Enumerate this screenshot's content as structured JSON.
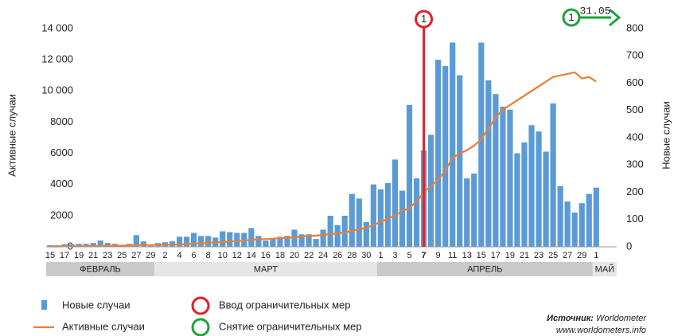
{
  "chart_data": {
    "type": "bar",
    "categories": [
      "15",
      null,
      "17",
      null,
      "19",
      null,
      "21",
      null,
      "23",
      null,
      "25",
      null,
      "27",
      null,
      "29",
      null,
      "2",
      null,
      "4",
      null,
      "6",
      null,
      "8",
      null,
      "10",
      null,
      "12",
      null,
      "14",
      null,
      "16",
      null,
      "18",
      null,
      "20",
      null,
      "22",
      null,
      "24",
      null,
      "26",
      null,
      "28",
      null,
      "30",
      null,
      "1",
      null,
      "3",
      null,
      "5",
      null,
      "7",
      null,
      "9",
      null,
      "11",
      null,
      "13",
      null,
      "15",
      null,
      "17",
      null,
      "19",
      null,
      "21",
      null,
      "23",
      null,
      "25",
      null,
      "27",
      null,
      "29",
      null,
      "1"
    ],
    "months": [
      "ФЕВРАЛЬ",
      "МАРТ",
      "АПРЕЛЬ",
      "МАЙ"
    ],
    "series": [
      {
        "name": "Новые случаи",
        "type": "bar",
        "axis": "y2",
        "color": "#5b9bd5",
        "values": [
          6,
          6,
          9,
          9,
          11,
          11,
          14,
          23,
          14,
          11,
          6,
          11,
          43,
          20,
          3,
          14,
          17,
          20,
          37,
          37,
          51,
          40,
          40,
          34,
          57,
          54,
          51,
          51,
          69,
          40,
          23,
          31,
          37,
          40,
          63,
          46,
          46,
          29,
          63,
          114,
          80,
          114,
          194,
          177,
          91,
          229,
          211,
          234,
          320,
          206,
          520,
          251,
          354,
          411,
          686,
          663,
          749,
          629,
          251,
          269,
          749,
          611,
          560,
          514,
          503,
          343,
          383,
          446,
          423,
          349,
          526,
          223,
          166,
          126,
          160,
          194,
          217
        ]
      },
      {
        "name": "Активные случаи",
        "type": "line",
        "color": "#ed7d31",
        "values": [
          20,
          25,
          30,
          35,
          40,
          45,
          50,
          60,
          65,
          70,
          75,
          80,
          100,
          110,
          110,
          120,
          130,
          140,
          160,
          180,
          200,
          230,
          260,
          280,
          310,
          340,
          370,
          400,
          450,
          480,
          500,
          520,
          560,
          590,
          620,
          650,
          690,
          720,
          760,
          820,
          860,
          920,
          1020,
          1130,
          1220,
          1400,
          1600,
          1800,
          2000,
          2300,
          2500,
          2900,
          3500,
          3900,
          4300,
          4900,
          5700,
          6000,
          6200,
          6500,
          6900,
          7600,
          8300,
          8800,
          9100,
          9400,
          9700,
          10000,
          10300,
          10600,
          10900,
          11000,
          11100,
          11200,
          10800,
          10900,
          10600
        ]
      }
    ],
    "ylabel": "Активные случаи",
    "y2label": "Новые случаи",
    "ylim": [
      0,
      14000
    ],
    "yticks": [
      0,
      2000,
      4000,
      6000,
      8000,
      {
        "value": 10000,
        "label": "10 000"
      },
      {
        "value": 12000,
        "label": "12 000"
      },
      {
        "value": 14000,
        "label": "14 000"
      }
    ],
    "y2lim": [
      0,
      800
    ],
    "y2ticks": [
      0,
      100,
      200,
      300,
      400,
      500,
      600,
      700,
      800
    ],
    "annotations": [
      {
        "text": "1",
        "at": "7",
        "color": "#e3202a",
        "legend": "Ввод ограничительных мер"
      },
      {
        "text": "1",
        "date": "31.05",
        "color": "#1fa33a",
        "legend": "Снятие ограничительных мер"
      }
    ],
    "source": {
      "label": "Источник:",
      "name": "Worldometer",
      "url": "www.worldometers.info"
    }
  }
}
